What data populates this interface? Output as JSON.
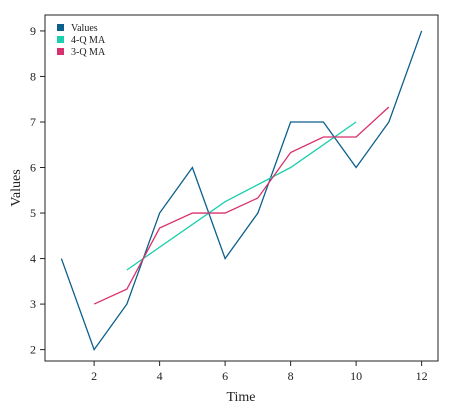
{
  "chart_data": {
    "type": "line",
    "title": "",
    "xlabel": "Time",
    "ylabel": "Values",
    "xlim": [
      0.5,
      12.5
    ],
    "ylim": [
      1.75,
      9.35
    ],
    "xticks": [
      2,
      4,
      6,
      8,
      10,
      12
    ],
    "yticks": [
      2,
      3,
      4,
      5,
      6,
      7,
      8,
      9
    ],
    "grid": false,
    "legend_position": "top-left",
    "series": [
      {
        "name": "Values",
        "color": "#0b5f8c",
        "x": [
          1,
          2,
          3,
          4,
          5,
          6,
          7,
          8,
          9,
          10,
          11,
          12
        ],
        "y": [
          4,
          2,
          3,
          5,
          6,
          4,
          5,
          7,
          7,
          6,
          7,
          9
        ]
      },
      {
        "name": "4-Q MA",
        "color": "#19cfae",
        "x": [
          3,
          6,
          8,
          10
        ],
        "y": [
          3.75,
          5.25,
          6.0,
          7.0
        ]
      },
      {
        "name": "3-Q MA",
        "color": "#d8326e",
        "x": [
          2,
          3,
          4,
          5,
          6,
          7,
          8,
          9,
          10,
          11
        ],
        "y": [
          3.0,
          3.33,
          4.67,
          5.0,
          5.0,
          5.33,
          6.33,
          6.67,
          6.67,
          7.33
        ]
      }
    ]
  }
}
